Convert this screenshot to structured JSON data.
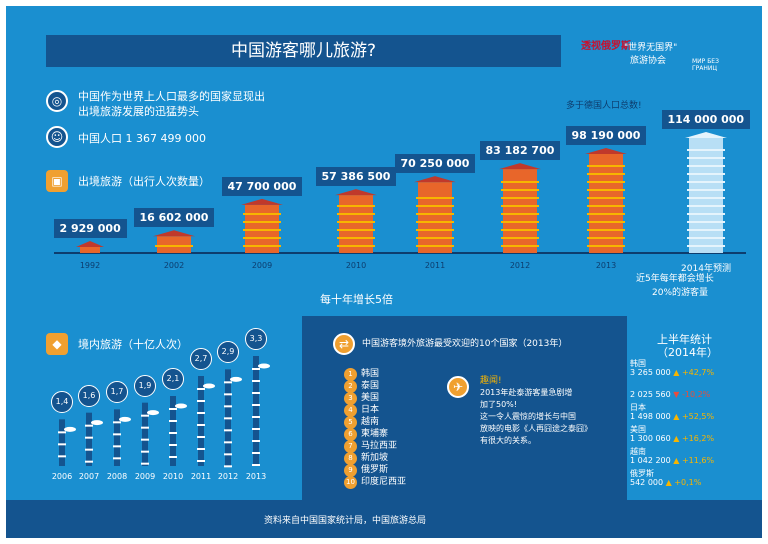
{
  "title": "中国游客哪儿旅游?",
  "brand": {
    "logo": "透视俄罗斯",
    "slogan_1": "\"世界无国界\"",
    "slogan_2": "旅游协会",
    "mark": "МИР БЕЗ ГРАНИЦ"
  },
  "intro": {
    "line_1": "中国作为世界上人口最多的国家显现出",
    "line_2": "出境旅游发展的迅猛势头",
    "population": "中国人口 1 367 499 000",
    "outbound_title": "出境旅游（出行人次数量）"
  },
  "colors": {
    "bg": "#1a8fd0",
    "dark": "#14548f",
    "tower": "#e8662a",
    "tower_light": "#f7b500",
    "forecast": "#b8dff5"
  },
  "chart_data": [
    {
      "type": "bar",
      "title": "出境旅游（出行人次数量）",
      "categories": [
        "1992",
        "2002",
        "2009",
        "2010",
        "2011",
        "2012",
        "2013",
        "2014年预测"
      ],
      "values": [
        2929000,
        16602000,
        47700000,
        57386500,
        70250000,
        83182700,
        98190000,
        114000000
      ],
      "value_labels": [
        "2 929 000",
        "16 602 000",
        "47 700 000",
        "57 386 500",
        "70 250 000",
        "83 182 700",
        "98 190 000",
        "114 000 000"
      ],
      "year_labels": [
        "1992",
        "2002",
        "2009",
        "2010",
        "2011",
        "2012",
        "2013",
        "2014年预测"
      ],
      "annotations": {
        "germany_note": "多于德国人口总数!",
        "decade": "每十年增长5倍",
        "forecast_1": "近5年每年都会增长",
        "forecast_2": "20%的游客量"
      }
    },
    {
      "type": "bar",
      "title": "境内旅游（十亿人次）",
      "categories": [
        "2006",
        "2007",
        "2008",
        "2009",
        "2010",
        "2011",
        "2012",
        "2013"
      ],
      "values": [
        1.4,
        1.6,
        1.7,
        1.9,
        2.1,
        2.7,
        2.9,
        3.3
      ],
      "value_labels": [
        "1,4",
        "1,6",
        "1,7",
        "1,9",
        "2,1",
        "2,7",
        "2,9",
        "3,3"
      ]
    }
  ],
  "top10": {
    "title": "中国游客境外旅游最受欢迎的10个国家（2013年）",
    "countries": [
      "韩国",
      "泰国",
      "美国",
      "日本",
      "越南",
      "柬埔寨",
      "马拉西亚",
      "新加坡",
      "俄罗斯",
      "印度尼西亚"
    ],
    "ranks": [
      "1",
      "2",
      "3",
      "4",
      "5",
      "6",
      "7",
      "8",
      "9",
      "10"
    ],
    "fun_title": "趣闻!",
    "fun_1": "2013年赴泰游客量急剧增",
    "fun_2": "加了50%!",
    "fun_3": "这一令人震惊的增长与中国",
    "fun_4": "放映的电影《人再囧途之泰囧》",
    "fun_5": "有很大的关系。"
  },
  "half_year": {
    "title_1": "上半年统计",
    "title_2": "（2014年）",
    "rows": [
      {
        "country": "韩国",
        "value": "3 265 000",
        "change": "+42,7%",
        "dir": "up"
      },
      {
        "country": "",
        "value": "2 025 560",
        "change": "-10,2%",
        "dir": "down"
      },
      {
        "country": "日本",
        "value": "1 498 000",
        "change": "+52,5%",
        "dir": "up"
      },
      {
        "country": "美国",
        "value": "1 300 060",
        "change": "+16,2%",
        "dir": "up"
      },
      {
        "country": "越南",
        "value": "1 042 200",
        "change": "+11,6%",
        "dir": "up"
      },
      {
        "country": "俄罗斯",
        "value": "542 000",
        "change": "+0,1%",
        "dir": "up"
      }
    ]
  },
  "footer": "资料来自中国国家统计局，中国旅游总局"
}
